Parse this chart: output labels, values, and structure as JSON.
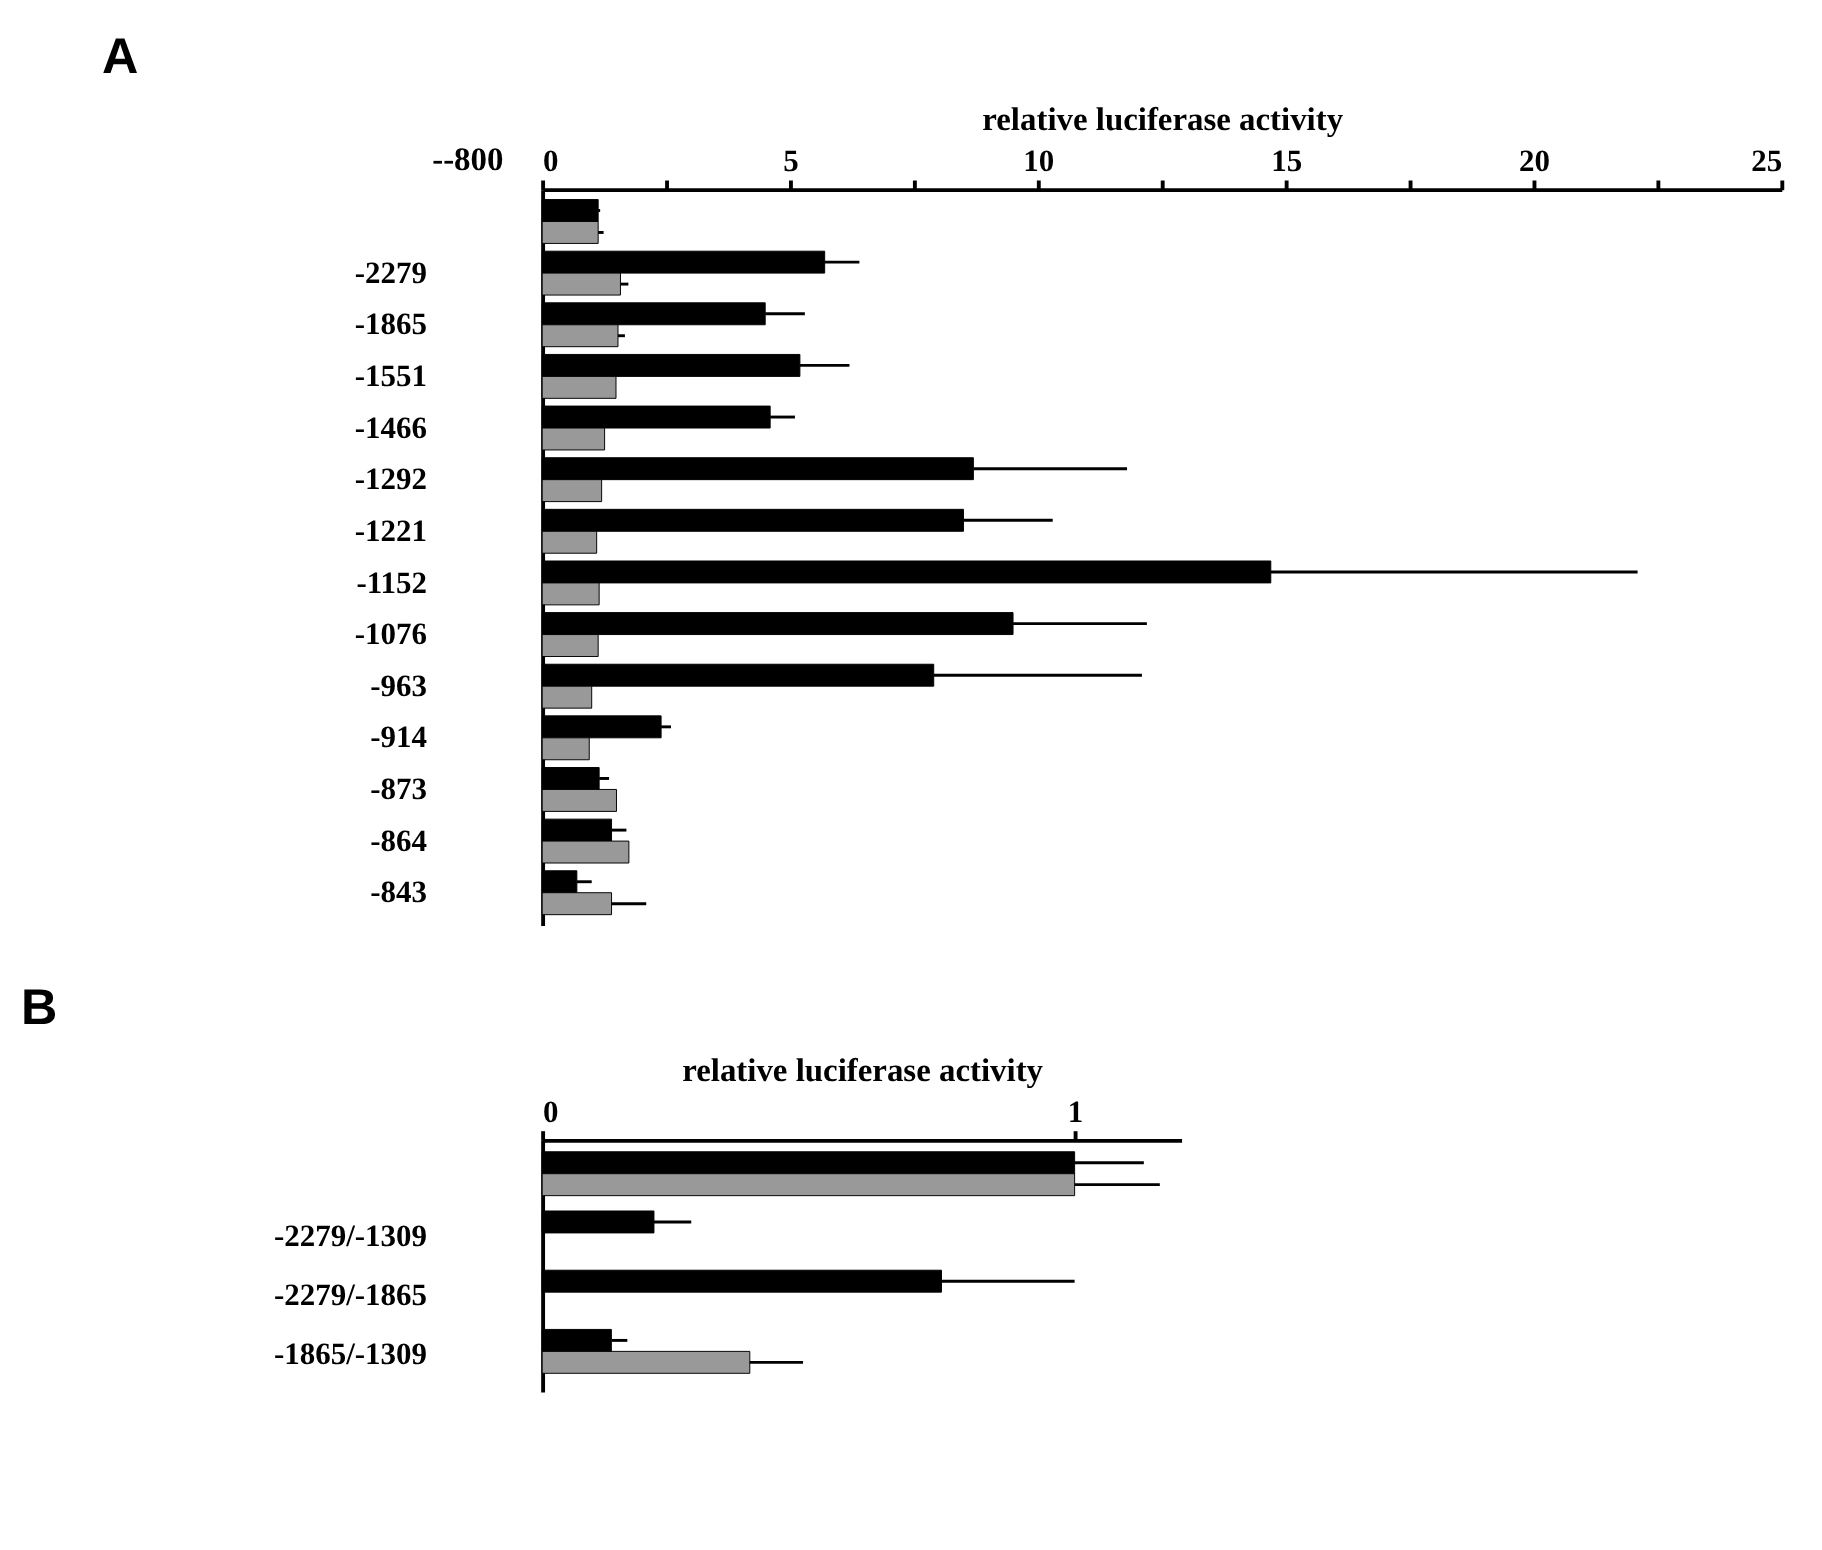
{
  "chart_data": [
    {
      "type": "bar",
      "orientation": "horizontal",
      "title": "A",
      "xlabel": "relative luciferase activity",
      "categories": [
        null,
        "-2279",
        "-1865",
        "-1551",
        "-1466",
        "-1292",
        "-1221",
        "-1152",
        "-1076",
        "-963",
        "-914",
        "-873",
        "-864",
        "-843"
      ],
      "series": [
        {
          "color": "#000000",
          "values": [
            1.13,
            5.7,
            4.5,
            5.2,
            4.6,
            8.7,
            8.5,
            14.7,
            9.5,
            7.9,
            2.4,
            1.15,
            1.4,
            0.7
          ],
          "errors": [
            [
              1.13,
              1.17
            ],
            [
              5.7,
              6.4
            ],
            [
              4.5,
              5.3
            ],
            [
              5.2,
              6.2
            ],
            [
              4.6,
              5.1
            ],
            [
              8.7,
              11.8
            ],
            [
              8.5,
              10.3
            ],
            [
              14.7,
              22.1
            ],
            [
              9.5,
              12.2
            ],
            [
              7.9,
              12.1
            ],
            [
              2.4,
              2.6
            ],
            [
              1.15,
              1.35
            ],
            [
              1.4,
              1.7
            ],
            [
              0.7,
              1.0
            ]
          ]
        },
        {
          "color": "#999999",
          "values": [
            1.13,
            1.58,
            1.53,
            1.49,
            1.26,
            1.2,
            1.1,
            1.15,
            1.13,
            1.0,
            0.95,
            1.5,
            1.75,
            1.4
          ],
          "errors": [
            [
              1.13,
              1.24
            ],
            [
              1.58,
              1.74
            ],
            [
              1.53,
              1.67
            ],
            null,
            null,
            null,
            null,
            null,
            null,
            null,
            null,
            null,
            null,
            [
              1.4,
              2.1
            ]
          ]
        }
      ],
      "xlim": [
        0,
        25
      ],
      "xticks": [
        0,
        {
          "value": 2.5,
          "label": null
        },
        5,
        {
          "value": 7.5,
          "label": null
        },
        10,
        {
          "value": 12.5,
          "label": null
        },
        15,
        {
          "value": 17.5,
          "label": null
        },
        20,
        {
          "value": 22.5,
          "label": null
        },
        25
      ],
      "annotations": [
        "--800"
      ],
      "grid": false,
      "legend": false
    },
    {
      "type": "bar",
      "orientation": "horizontal",
      "title": "B",
      "xlabel": "relative luciferase activity",
      "categories": [
        null,
        "-2279/-1309",
        "-2279/-1865",
        "-1865/-1309"
      ],
      "series": [
        {
          "color": "#000000",
          "values": [
            1.0,
            0.21,
            0.75,
            0.13
          ],
          "errors": [
            [
              1.0,
              1.13
            ],
            [
              0.21,
              0.28
            ],
            [
              0.75,
              1.0
            ],
            [
              0.13,
              0.16
            ]
          ]
        },
        {
          "color": "#999999",
          "values": [
            1.0,
            null,
            null,
            0.39
          ],
          "errors": [
            [
              1.0,
              1.16
            ],
            null,
            null,
            [
              0.39,
              0.49
            ]
          ]
        }
      ],
      "xlim": [
        0,
        1.2
      ],
      "xticks": [
        0,
        1
      ],
      "grid": false,
      "legend": false
    }
  ]
}
